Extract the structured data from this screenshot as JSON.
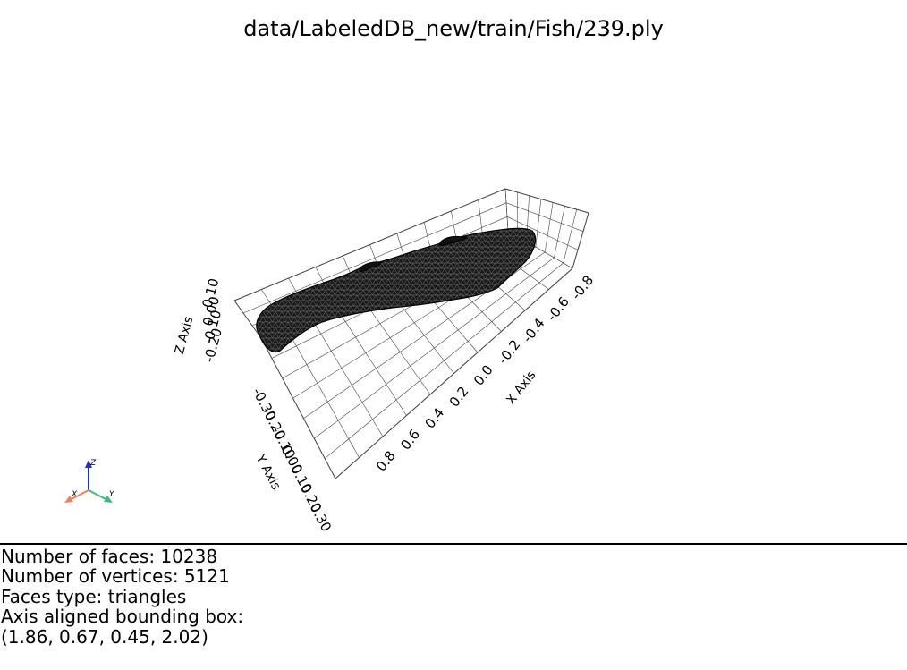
{
  "window": {
    "title": "data/LabeledDB_new/train/Fish/239.ply"
  },
  "axes": {
    "x": {
      "label": "X Axis",
      "ticks": [
        "0.8",
        "0.6",
        "0.4",
        "0.2",
        "0.0",
        "-0.2",
        "-0.4",
        "-0.6",
        "-0.8"
      ]
    },
    "y": {
      "label": "Y Axis",
      "ticks": [
        "-0.30",
        "-0.20",
        "-0.10",
        "0.00",
        "0.10",
        "0.20",
        "0.30"
      ]
    },
    "z": {
      "label": "Z Axis",
      "ticks": [
        "-0.20",
        "-0.10",
        "0.00",
        "0.10"
      ]
    },
    "grid": true
  },
  "orientation_widget": {
    "x_label": "X",
    "y_label": "Y",
    "z_label": "Z",
    "colors": {
      "x": "#f08060",
      "y": "#40b880",
      "z": "#2030c0"
    }
  },
  "info": {
    "faces": "Number of faces: 10238",
    "vertices": "Number of vertices: 5121",
    "faces_type": "Faces type: triangles",
    "bbox_label": "Axis aligned bounding box:",
    "bbox_value": "(1.86, 0.67, 0.45, 2.02)"
  },
  "mesh": {
    "color": "#1a1a1a",
    "wire_color": "#7a7a7a"
  }
}
